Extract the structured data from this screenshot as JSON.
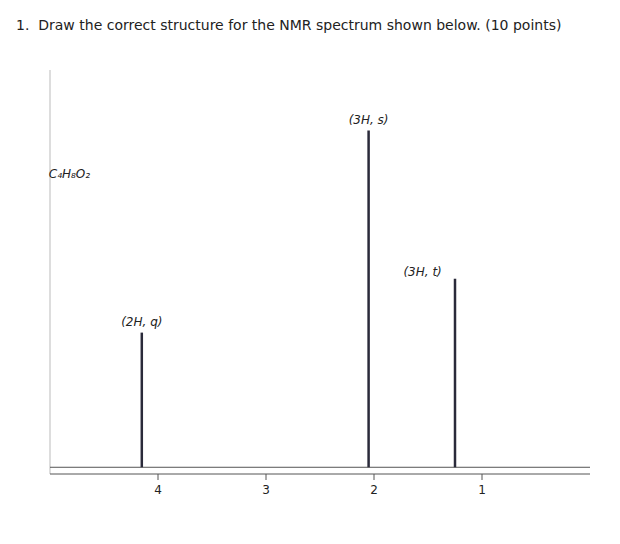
{
  "chart_data": {
    "type": "stem",
    "title": "1.  Draw the correct structure for the NMR spectrum shown below. (10 points)",
    "x": [
      4.15,
      2.05,
      1.25
    ],
    "values": [
      0.4,
      1.0,
      0.56
    ],
    "color": "#2a2a3a",
    "xlim": [
      5.0,
      0.0
    ],
    "xticks": [
      4,
      3,
      2,
      1
    ],
    "ylim": [
      -0.02,
      1.18
    ],
    "yticks": [],
    "tick_labels": "x",
    "grid": false,
    "annotations": [
      {
        "text": "(2H, q)",
        "x": 4.15,
        "y": 0.41
      },
      {
        "text": "(3H, s)",
        "x": 2.05,
        "y": 1.01
      },
      {
        "text": "(3H, t)",
        "x": 1.55,
        "y": 0.56
      },
      {
        "text": "C₄H₈O₂",
        "x": 4.82,
        "y": 0.85
      }
    ]
  }
}
